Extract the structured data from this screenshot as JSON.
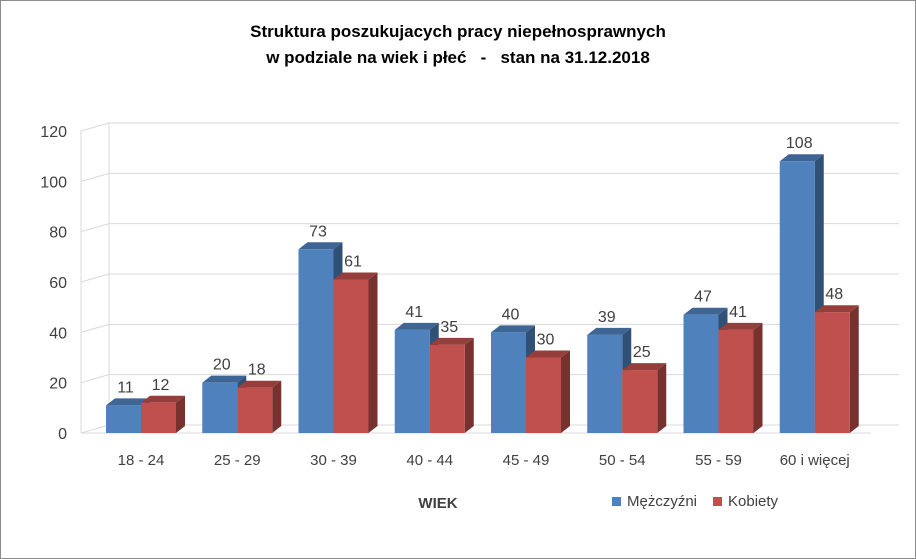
{
  "chart_data": {
    "type": "bar",
    "title_lines": [
      "Struktura poszukujacych pracy niepełnosprawnych",
      "w podziale na wiek i płeć   -   stan na 31.12.2018"
    ],
    "xlabel": "WIEK",
    "ylabel": "",
    "ylim": [
      0,
      120
    ],
    "yticks": [
      "0",
      "20",
      "40",
      "60",
      "80",
      "100",
      "120"
    ],
    "grid": true,
    "legend_position": "bottom-right",
    "categories": [
      "18 - 24",
      "25 - 29",
      "30 - 39",
      "40 - 44",
      "45 - 49",
      "50 - 54",
      "55 - 59",
      "60 i więcej"
    ],
    "series": [
      {
        "name": "Mężczyźni",
        "color": "#4f81bd",
        "values": [
          11,
          20,
          73,
          41,
          40,
          39,
          47,
          108
        ]
      },
      {
        "name": "Kobiety",
        "color": "#c0504d",
        "values": [
          12,
          18,
          61,
          35,
          30,
          25,
          41,
          48
        ]
      }
    ]
  }
}
